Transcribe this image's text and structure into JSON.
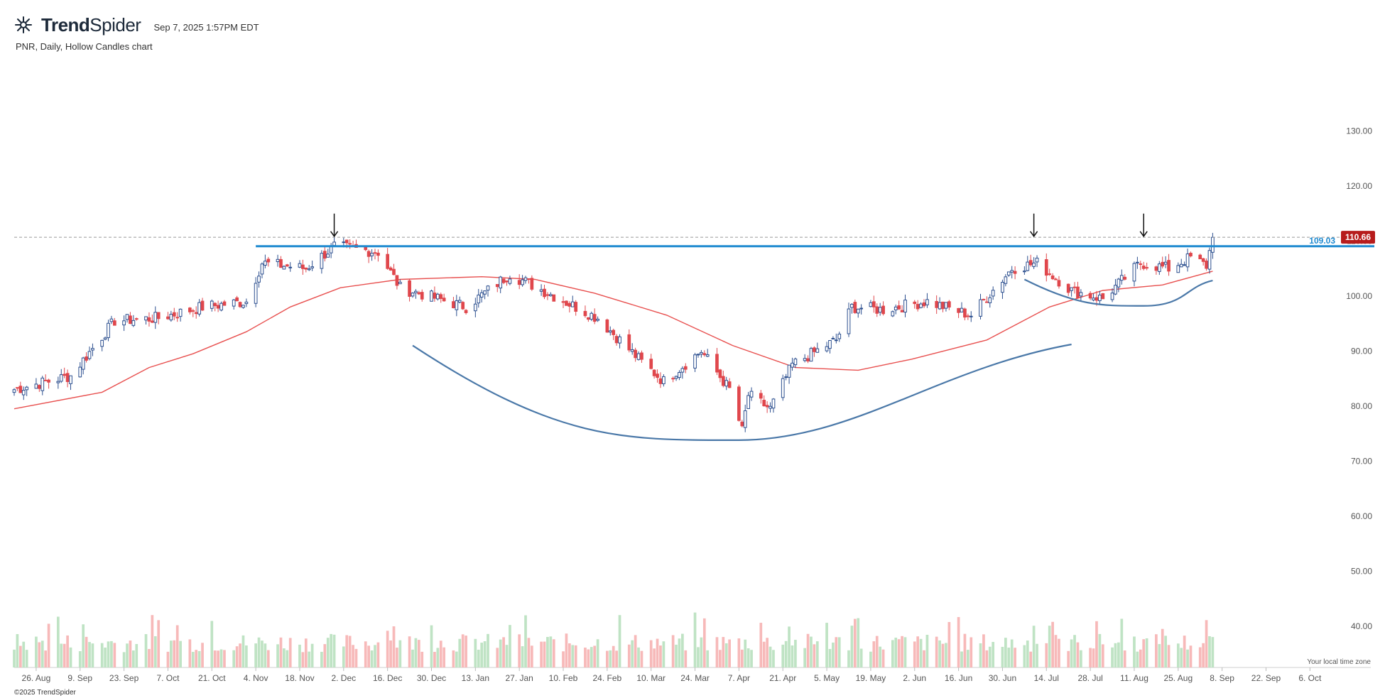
{
  "header": {
    "brand": "TrendSpider",
    "brand_bold": "Trend",
    "brand_light": "Spider",
    "timestamp": "Sep 7, 2025 1:57PM EDT",
    "subtitle": "PNR, Daily, Hollow Candles chart",
    "tz_note": "Your local time zone",
    "footer": "©2025 TrendSpider"
  },
  "colors": {
    "up": "#2c4f8f",
    "down": "#e0474c",
    "vol_up": "#bfe3c4",
    "vol_down": "#f7b9b9",
    "ma": "#e8504f",
    "resistance": "#1f8ad0",
    "cup": "#4a78a8",
    "last_price_bg": "#b71c1c"
  },
  "chart_data": {
    "type": "candlestick",
    "ticker": "PNR",
    "interval": "Daily",
    "style": "Hollow Candles",
    "y_axis": {
      "ticks": [
        130,
        120,
        110,
        100,
        90,
        80,
        70,
        60,
        50,
        40
      ],
      "labels": [
        "130.00",
        "120.00",
        "110.00",
        "100.00",
        "90.00",
        "80.00",
        "70.00",
        "60.00",
        "50.00",
        "40.00"
      ],
      "ylim": [
        32.5,
        137
      ]
    },
    "x_axis": {
      "start": "2024-08-19",
      "end": "2025-10-10",
      "ticks": [
        {
          "date": "2024-08-26",
          "label": "26. Aug"
        },
        {
          "date": "2024-09-09",
          "label": "9. Sep"
        },
        {
          "date": "2024-09-23",
          "label": "23. Sep"
        },
        {
          "date": "2024-10-07",
          "label": "7. Oct"
        },
        {
          "date": "2024-10-21",
          "label": "21. Oct"
        },
        {
          "date": "2024-11-04",
          "label": "4. Nov"
        },
        {
          "date": "2024-11-18",
          "label": "18. Nov"
        },
        {
          "date": "2024-12-02",
          "label": "2. Dec"
        },
        {
          "date": "2024-12-16",
          "label": "16. Dec"
        },
        {
          "date": "2024-12-30",
          "label": "30. Dec"
        },
        {
          "date": "2025-01-13",
          "label": "13. Jan"
        },
        {
          "date": "2025-01-27",
          "label": "27. Jan"
        },
        {
          "date": "2025-02-10",
          "label": "10. Feb"
        },
        {
          "date": "2025-02-24",
          "label": "24. Feb"
        },
        {
          "date": "2025-03-10",
          "label": "10. Mar"
        },
        {
          "date": "2025-03-24",
          "label": "24. Mar"
        },
        {
          "date": "2025-04-07",
          "label": "7. Apr"
        },
        {
          "date": "2025-04-21",
          "label": "21. Apr"
        },
        {
          "date": "2025-05-05",
          "label": "5. May"
        },
        {
          "date": "2025-05-19",
          "label": "19. May"
        },
        {
          "date": "2025-06-02",
          "label": "2. Jun"
        },
        {
          "date": "2025-06-16",
          "label": "16. Jun"
        },
        {
          "date": "2025-06-30",
          "label": "30. Jun"
        },
        {
          "date": "2025-07-14",
          "label": "14. Jul"
        },
        {
          "date": "2025-07-28",
          "label": "28. Jul"
        },
        {
          "date": "2025-08-11",
          "label": "11. Aug"
        },
        {
          "date": "2025-08-25",
          "label": "25. Aug"
        },
        {
          "date": "2025-09-08",
          "label": "8. Sep"
        },
        {
          "date": "2025-09-22",
          "label": "22. Sep"
        },
        {
          "date": "2025-10-06",
          "label": "6. Oct"
        }
      ]
    },
    "price_path": [
      {
        "date": "2024-08-19",
        "close": 83.0
      },
      {
        "date": "2024-09-06",
        "close": 85.5
      },
      {
        "date": "2024-09-20",
        "close": 95.5
      },
      {
        "date": "2024-10-04",
        "close": 96.0
      },
      {
        "date": "2024-10-18",
        "close": 98.0
      },
      {
        "date": "2024-11-01",
        "close": 99.0
      },
      {
        "date": "2024-11-06",
        "close": 106.0
      },
      {
        "date": "2024-11-20",
        "close": 105.0
      },
      {
        "date": "2024-11-29",
        "close": 109.0
      },
      {
        "date": "2024-12-13",
        "close": 108.0
      },
      {
        "date": "2024-12-20",
        "close": 101.5
      },
      {
        "date": "2025-01-10",
        "close": 98.0
      },
      {
        "date": "2025-01-24",
        "close": 104.0
      },
      {
        "date": "2025-02-07",
        "close": 100.0
      },
      {
        "date": "2025-02-21",
        "close": 96.0
      },
      {
        "date": "2025-03-07",
        "close": 88.0
      },
      {
        "date": "2025-03-14",
        "close": 84.5
      },
      {
        "date": "2025-03-26",
        "close": 90.0
      },
      {
        "date": "2025-04-04",
        "close": 83.0
      },
      {
        "date": "2025-04-08",
        "close": 75.5
      },
      {
        "date": "2025-04-10",
        "close": 82.0
      },
      {
        "date": "2025-04-17",
        "close": 79.5
      },
      {
        "date": "2025-04-24",
        "close": 87.5
      },
      {
        "date": "2025-05-08",
        "close": 92.0
      },
      {
        "date": "2025-05-13",
        "close": 98.0
      },
      {
        "date": "2025-05-23",
        "close": 97.5
      },
      {
        "date": "2025-06-06",
        "close": 99.0
      },
      {
        "date": "2025-06-20",
        "close": 96.5
      },
      {
        "date": "2025-07-03",
        "close": 105.0
      },
      {
        "date": "2025-07-11",
        "close": 106.0
      },
      {
        "date": "2025-07-22",
        "close": 101.0
      },
      {
        "date": "2025-08-01",
        "close": 99.5
      },
      {
        "date": "2025-08-13",
        "close": 106.0
      },
      {
        "date": "2025-08-22",
        "close": 105.0
      },
      {
        "date": "2025-08-29",
        "close": 107.0
      },
      {
        "date": "2025-09-03",
        "close": 105.5
      },
      {
        "date": "2025-09-05",
        "close": 110.66
      }
    ],
    "moving_average": [
      {
        "date": "2024-08-19",
        "value": 79.5
      },
      {
        "date": "2024-09-16",
        "value": 82.5
      },
      {
        "date": "2024-10-01",
        "value": 87.0
      },
      {
        "date": "2024-10-15",
        "value": 89.5
      },
      {
        "date": "2024-11-01",
        "value": 93.5
      },
      {
        "date": "2024-11-15",
        "value": 98.0
      },
      {
        "date": "2024-12-01",
        "value": 101.5
      },
      {
        "date": "2024-12-20",
        "value": 103.0
      },
      {
        "date": "2025-01-15",
        "value": 103.5
      },
      {
        "date": "2025-02-01",
        "value": 103.0
      },
      {
        "date": "2025-02-20",
        "value": 100.5
      },
      {
        "date": "2025-03-15",
        "value": 96.5
      },
      {
        "date": "2025-04-05",
        "value": 91.0
      },
      {
        "date": "2025-04-25",
        "value": 87.0
      },
      {
        "date": "2025-05-15",
        "value": 86.5
      },
      {
        "date": "2025-06-01",
        "value": 88.5
      },
      {
        "date": "2025-06-25",
        "value": 92.0
      },
      {
        "date": "2025-07-15",
        "value": 98.0
      },
      {
        "date": "2025-08-01",
        "value": 101.0
      },
      {
        "date": "2025-08-20",
        "value": 102.0
      },
      {
        "date": "2025-09-05",
        "value": 104.5
      }
    ],
    "resistance": {
      "value": 109.03,
      "start": "2024-11-04",
      "label": "109.03"
    },
    "last_price": {
      "value": 110.66,
      "label": "110.66"
    },
    "arrows": [
      "2024-11-29",
      "2025-07-10",
      "2025-08-14"
    ],
    "cups": [
      {
        "start": "2024-12-24",
        "start_y": 91,
        "bottom": "2025-04-07",
        "bottom_y": 73.8,
        "end": "2025-07-22",
        "end_y": 91.2
      },
      {
        "start": "2025-07-07",
        "start_y": 103,
        "bottom": "2025-08-14",
        "bottom_y": 98.2,
        "end": "2025-09-05",
        "end_y": 102.8
      }
    ],
    "volume": {
      "unit": "relative",
      "max": 1.0
    }
  }
}
